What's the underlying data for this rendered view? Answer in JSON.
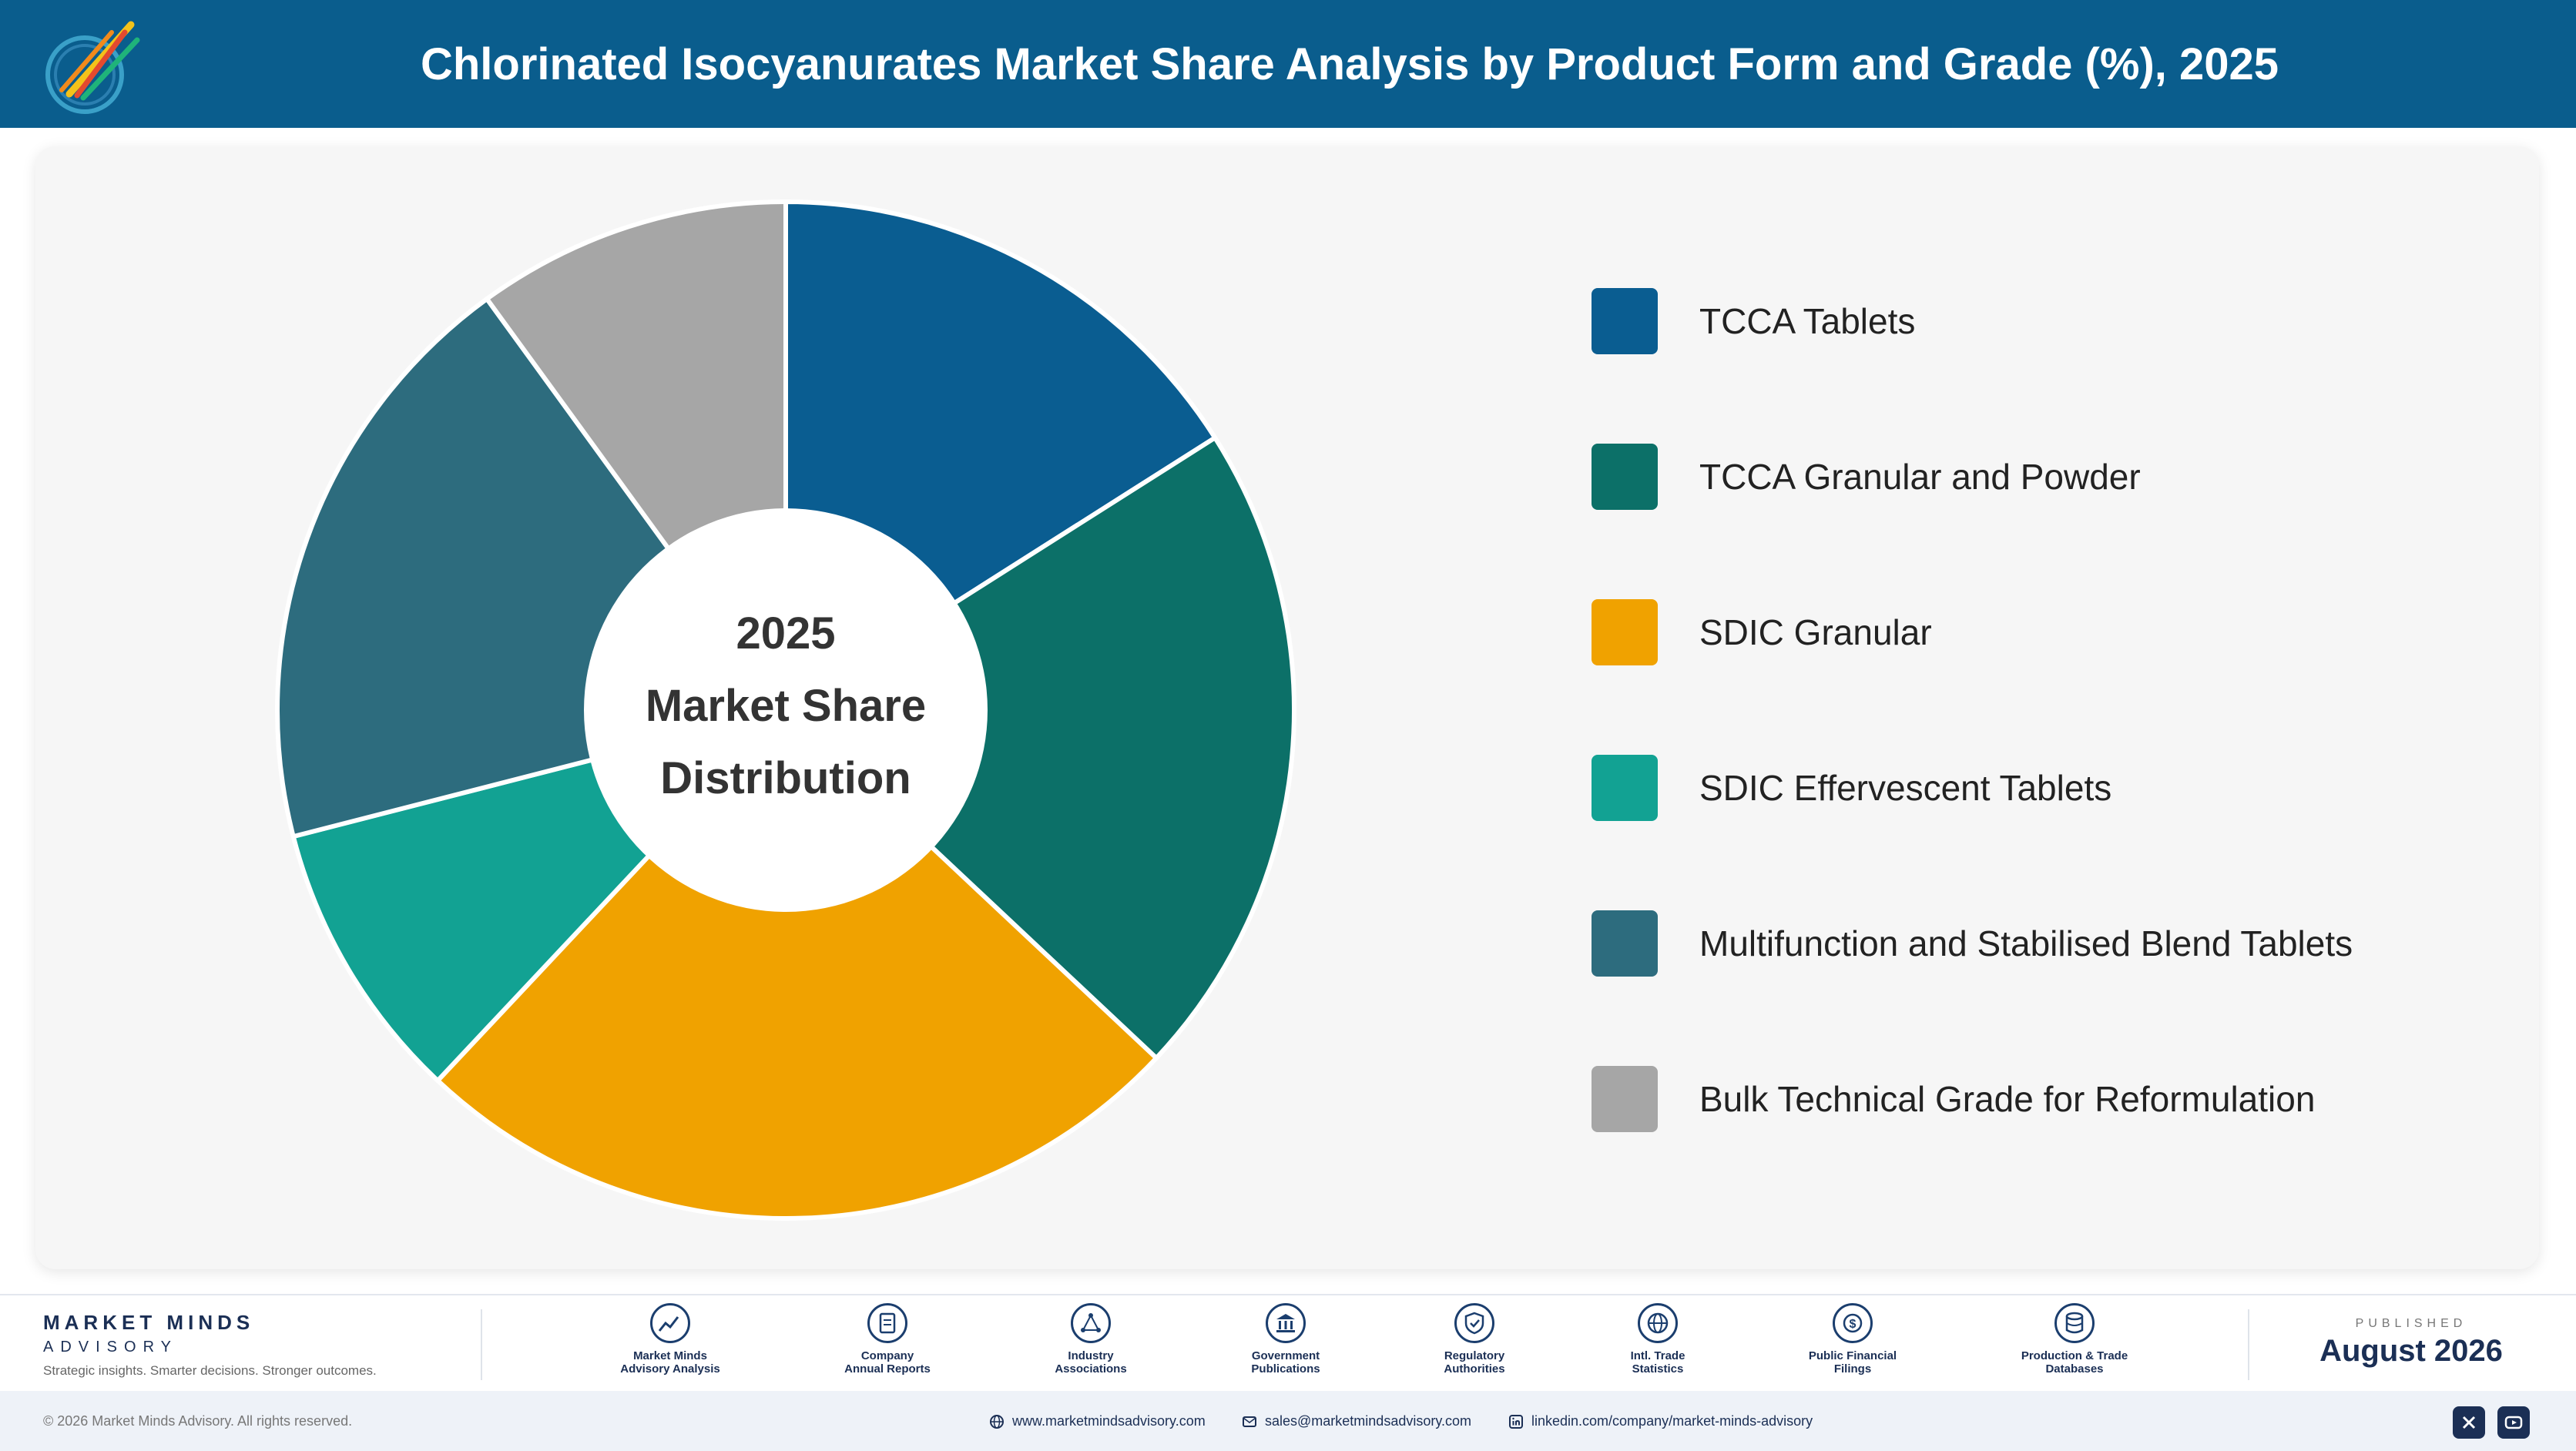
{
  "header": {
    "title": "Chlorinated Isocyanurates Market Share Analysis by Product Form and Grade (%), 2025"
  },
  "chart_data": {
    "type": "pie",
    "style": "donut",
    "center_label": [
      "2025",
      "Market Share",
      "Distribution"
    ],
    "categories": [
      "TCCA Tablets",
      "TCCA Granular and Powder",
      "SDIC Granular",
      "SDIC Effervescent Tablets",
      "Multifunction and Stabilised Blend Tablets",
      "Bulk Technical Grade for Reformulation"
    ],
    "values": [
      16,
      21,
      25,
      9,
      19,
      10
    ],
    "colors": [
      "#0a5d91",
      "#0c7068",
      "#f0a200",
      "#12a293",
      "#2d6c7e",
      "#a6a6a6"
    ],
    "legend_position": "right"
  },
  "footer": {
    "brand_name": "MARKET MINDS",
    "brand_sub": "ADVISORY",
    "tagline": "Strategic insights. Smarter decisions. Stronger outcomes.",
    "sources": [
      {
        "line1": "Market Minds",
        "line2": "Advisory Analysis",
        "icon": "trend-line-icon"
      },
      {
        "line1": "Company",
        "line2": "Annual Reports",
        "icon": "document-icon"
      },
      {
        "line1": "Industry",
        "line2": "Associations",
        "icon": "network-icon"
      },
      {
        "line1": "Government",
        "line2": "Publications",
        "icon": "government-building-icon"
      },
      {
        "line1": "Regulatory",
        "line2": "Authorities",
        "icon": "shield-check-icon"
      },
      {
        "line1": "Intl. Trade",
        "line2": "Statistics",
        "icon": "globe-icon"
      },
      {
        "line1": "Public Financial",
        "line2": "Filings",
        "icon": "dollar-coin-icon"
      },
      {
        "line1": "Production & Trade",
        "line2": "Databases",
        "icon": "database-icon"
      }
    ],
    "published_caption": "PUBLISHED",
    "published_date": "August 2026",
    "copyright": "© 2026 Market Minds Advisory. All rights reserved.",
    "website": "www.marketmindsadvisory.com",
    "email": "sales@marketmindsadvisory.com",
    "linkedin": "linkedin.com/company/market-minds-advisory"
  }
}
